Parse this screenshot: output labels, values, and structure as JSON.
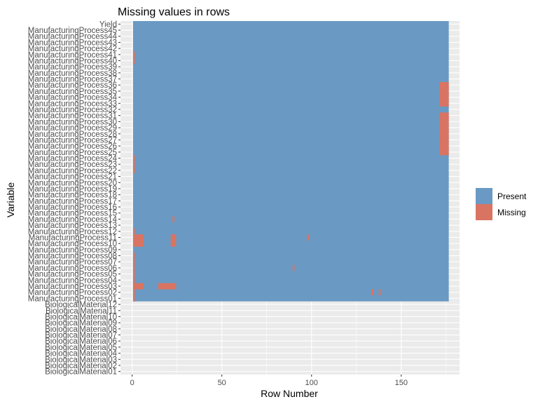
{
  "chart_data": {
    "type": "heatmap",
    "title": "Missing values in rows",
    "xlabel": "Row Number",
    "ylabel": "Variable",
    "xlim": [
      0,
      176
    ],
    "xticks": [
      0,
      50,
      100,
      150
    ],
    "grid": true,
    "legend_position": "right",
    "colors": {
      "present": "#6a9ac4",
      "missing": "#d97462",
      "panel": "#ebebeb",
      "grid": "#ffffff"
    },
    "legend": [
      {
        "key": "present",
        "label": "Present"
      },
      {
        "key": "missing",
        "label": "Missing"
      }
    ],
    "variables": [
      "Yield",
      "ManufacturingProcess45",
      "ManufacturingProcess44",
      "ManufacturingProcess43",
      "ManufacturingProcess42",
      "ManufacturingProcess41",
      "ManufacturingProcess40",
      "ManufacturingProcess39",
      "ManufacturingProcess38",
      "ManufacturingProcess37",
      "ManufacturingProcess36",
      "ManufacturingProcess35",
      "ManufacturingProcess34",
      "ManufacturingProcess33",
      "ManufacturingProcess32",
      "ManufacturingProcess31",
      "ManufacturingProcess30",
      "ManufacturingProcess29",
      "ManufacturingProcess28",
      "ManufacturingProcess27",
      "ManufacturingProcess26",
      "ManufacturingProcess25",
      "ManufacturingProcess24",
      "ManufacturingProcess23",
      "ManufacturingProcess22",
      "ManufacturingProcess21",
      "ManufacturingProcess20",
      "ManufacturingProcess19",
      "ManufacturingProcess18",
      "ManufacturingProcess17",
      "ManufacturingProcess16",
      "ManufacturingProcess15",
      "ManufacturingProcess14",
      "ManufacturingProcess13",
      "ManufacturingProcess12",
      "ManufacturingProcess11",
      "ManufacturingProcess10",
      "ManufacturingProcess09",
      "ManufacturingProcess08",
      "ManufacturingProcess07",
      "ManufacturingProcess06",
      "ManufacturingProcess05",
      "ManufacturingProcess04",
      "ManufacturingProcess03",
      "ManufacturingProcess02",
      "ManufacturingProcess01",
      "BiologicalMaterial12",
      "BiologicalMaterial11",
      "BiologicalMaterial10",
      "BiologicalMaterial09",
      "BiologicalMaterial08",
      "BiologicalMaterial07",
      "BiologicalMaterial06",
      "BiologicalMaterial05",
      "BiologicalMaterial04",
      "BiologicalMaterial03",
      "BiologicalMaterial02",
      "BiologicalMaterial01"
    ],
    "missing": [
      {
        "variable": "ManufacturingProcess41",
        "rows": [
          1,
          1
        ]
      },
      {
        "variable": "ManufacturingProcess40",
        "rows": [
          1,
          1
        ]
      },
      {
        "variable": "ManufacturingProcess36",
        "rows": [
          172,
          176
        ]
      },
      {
        "variable": "ManufacturingProcess35",
        "rows": [
          172,
          176
        ]
      },
      {
        "variable": "ManufacturingProcess34",
        "rows": [
          172,
          176
        ]
      },
      {
        "variable": "ManufacturingProcess33",
        "rows": [
          172,
          176
        ]
      },
      {
        "variable": "ManufacturingProcess31",
        "rows": [
          172,
          176
        ]
      },
      {
        "variable": "ManufacturingProcess30",
        "rows": [
          172,
          176
        ]
      },
      {
        "variable": "ManufacturingProcess29",
        "rows": [
          172,
          176
        ]
      },
      {
        "variable": "ManufacturingProcess28",
        "rows": [
          172,
          176
        ]
      },
      {
        "variable": "ManufacturingProcess27",
        "rows": [
          172,
          176
        ]
      },
      {
        "variable": "ManufacturingProcess26",
        "rows": [
          172,
          176
        ]
      },
      {
        "variable": "ManufacturingProcess25",
        "rows": [
          172,
          176
        ]
      },
      {
        "variable": "ManufacturingProcess24",
        "rows": [
          1,
          1
        ]
      },
      {
        "variable": "ManufacturingProcess23",
        "rows": [
          1,
          1
        ]
      },
      {
        "variable": "ManufacturingProcess22",
        "rows": [
          1,
          1
        ]
      },
      {
        "variable": "ManufacturingProcess14",
        "rows": [
          23,
          23
        ]
      },
      {
        "variable": "ManufacturingProcess12",
        "rows": [
          1,
          1
        ]
      },
      {
        "variable": "ManufacturingProcess11",
        "rows": [
          1,
          6
        ]
      },
      {
        "variable": "ManufacturingProcess11",
        "rows": [
          22,
          24
        ]
      },
      {
        "variable": "ManufacturingProcess11",
        "rows": [
          98,
          98
        ]
      },
      {
        "variable": "ManufacturingProcess10",
        "rows": [
          1,
          6
        ]
      },
      {
        "variable": "ManufacturingProcess10",
        "rows": [
          22,
          24
        ]
      },
      {
        "variable": "ManufacturingProcess08",
        "rows": [
          1,
          1
        ]
      },
      {
        "variable": "ManufacturingProcess07",
        "rows": [
          1,
          1
        ]
      },
      {
        "variable": "ManufacturingProcess06",
        "rows": [
          1,
          1
        ]
      },
      {
        "variable": "ManufacturingProcess06",
        "rows": [
          90,
          90
        ]
      },
      {
        "variable": "ManufacturingProcess05",
        "rows": [
          1,
          1
        ]
      },
      {
        "variable": "ManufacturingProcess04",
        "rows": [
          1,
          1
        ]
      },
      {
        "variable": "ManufacturingProcess03",
        "rows": [
          1,
          6
        ]
      },
      {
        "variable": "ManufacturingProcess03",
        "rows": [
          15,
          24
        ]
      },
      {
        "variable": "ManufacturingProcess02",
        "rows": [
          1,
          1
        ]
      },
      {
        "variable": "ManufacturingProcess02",
        "rows": [
          134,
          134
        ]
      },
      {
        "variable": "ManufacturingProcess02",
        "rows": [
          138,
          138
        ]
      },
      {
        "variable": "ManufacturingProcess01",
        "rows": [
          1,
          1
        ]
      }
    ],
    "present_coverage": [
      {
        "from_variable": "Yield",
        "to_variable": "ManufacturingProcess01",
        "rows": [
          1,
          176
        ]
      }
    ]
  }
}
